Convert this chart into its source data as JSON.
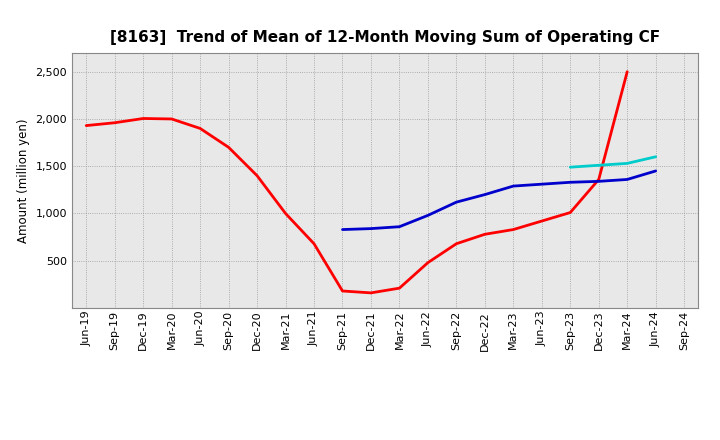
{
  "title": "[8163]  Trend of Mean of 12-Month Moving Sum of Operating CF",
  "ylabel": "Amount (million yen)",
  "ylim": [
    0,
    2700
  ],
  "yticks": [
    500,
    1000,
    1500,
    2000,
    2500
  ],
  "background_color": "#ffffff",
  "plot_bg_color": "#e8e8e8",
  "grid_color": "#999999",
  "series": {
    "3yr": {
      "color": "#ff0000",
      "x": [
        "Jun-19",
        "Sep-19",
        "Dec-19",
        "Mar-20",
        "Jun-20",
        "Sep-20",
        "Dec-20",
        "Mar-21",
        "Jun-21",
        "Sep-21",
        "Dec-21",
        "Mar-22",
        "Jun-22",
        "Sep-22",
        "Dec-22",
        "Mar-23",
        "Jun-23",
        "Sep-23",
        "Dec-23",
        "Mar-24"
      ],
      "y": [
        1930,
        1960,
        2005,
        2000,
        1900,
        1700,
        1400,
        1000,
        680,
        180,
        160,
        210,
        480,
        680,
        780,
        830,
        920,
        1010,
        1360,
        2500
      ]
    },
    "5yr": {
      "color": "#0000cc",
      "x": [
        "Sep-21",
        "Dec-21",
        "Mar-22",
        "Jun-22",
        "Sep-22",
        "Dec-22",
        "Mar-23",
        "Jun-23",
        "Sep-23",
        "Dec-23",
        "Mar-24",
        "Jun-24"
      ],
      "y": [
        830,
        840,
        860,
        980,
        1120,
        1200,
        1290,
        1310,
        1330,
        1340,
        1360,
        1450
      ]
    },
    "7yr": {
      "color": "#00cccc",
      "x": [
        "Sep-23",
        "Dec-23",
        "Mar-24",
        "Jun-24"
      ],
      "y": [
        1490,
        1510,
        1530,
        1600
      ]
    },
    "10yr": {
      "color": "#006600",
      "x": [],
      "y": []
    }
  },
  "xtick_labels": [
    "Jun-19",
    "Sep-19",
    "Dec-19",
    "Mar-20",
    "Jun-20",
    "Sep-20",
    "Dec-20",
    "Mar-21",
    "Jun-21",
    "Sep-21",
    "Dec-21",
    "Mar-22",
    "Jun-22",
    "Sep-22",
    "Dec-22",
    "Mar-23",
    "Jun-23",
    "Sep-23",
    "Dec-23",
    "Mar-24",
    "Jun-24",
    "Sep-24"
  ],
  "title_fontsize": 11,
  "tick_fontsize": 8,
  "legend_fontsize": 9
}
